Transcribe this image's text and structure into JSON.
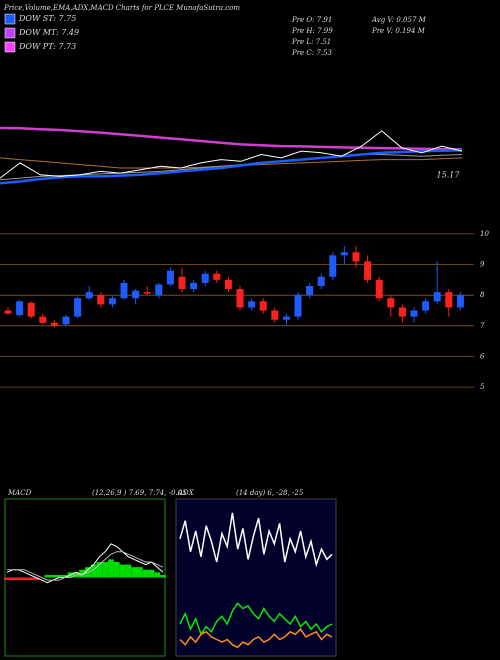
{
  "title": "Price,Volume,EMA,ADX,MACD Charts for PLCE MunafaSutra.com",
  "legend": [
    {
      "label": "DOW ST: 7.75",
      "color": "#1e5cff"
    },
    {
      "label": "DOW MT: 7.49",
      "color": "#c040ff"
    },
    {
      "label": "DOW PT: 7.73",
      "color": "#ff40ff"
    }
  ],
  "stats": [
    "Pre  O: 7.91",
    "Pre  H: 7.99",
    "Pre  L: 7.51",
    "Pre  C: 7.53",
    "Avg V: 0.057 M",
    "Pre  V: 0.194  M"
  ],
  "chart_data": [
    {
      "type": "line",
      "ylim": [
        14,
        22
      ],
      "annotation": {
        "text": "15.17",
        "value": 15.17
      },
      "series": [
        {
          "color": "#d040d0",
          "width": 2.5,
          "values": [
            17.97,
            17.95,
            17.9,
            17.85,
            17.78,
            17.7,
            17.6,
            17.5,
            17.4,
            17.3,
            17.2,
            17.1,
            17.0,
            16.95,
            16.9,
            16.88,
            16.85,
            16.82,
            16.8,
            16.78,
            16.76,
            16.74,
            16.72,
            16.7
          ]
        },
        {
          "color": "#b07030",
          "width": 1,
          "values": [
            16.2,
            16.1,
            16.0,
            15.9,
            15.8,
            15.7,
            15.6,
            15.6,
            15.6,
            15.6,
            15.65,
            15.7,
            15.75,
            15.8,
            15.85,
            15.9,
            15.95,
            16.0,
            16.05,
            16.1,
            16.1,
            16.1,
            16.15,
            16.2
          ]
        },
        {
          "color": "#999999",
          "width": 1,
          "values": [
            14.9,
            15.0,
            15.1,
            15.15,
            15.2,
            15.25,
            15.3,
            15.35,
            15.4,
            15.5,
            15.6,
            15.7,
            15.8,
            15.9,
            16.0,
            16.1,
            16.2,
            16.3,
            16.4,
            16.4,
            16.35,
            16.3,
            16.35,
            16.4
          ]
        },
        {
          "color": "#1e5cff",
          "width": 2.5,
          "values": [
            14.7,
            14.8,
            14.95,
            15.05,
            15.1,
            15.1,
            15.15,
            15.2,
            15.3,
            15.4,
            15.5,
            15.6,
            15.75,
            15.9,
            16.0,
            16.1,
            16.2,
            16.3,
            16.4,
            16.5,
            16.55,
            16.6,
            16.62,
            16.65
          ]
        },
        {
          "color": "#ffffff",
          "width": 1,
          "values": [
            15.0,
            15.9,
            15.2,
            15.1,
            15.2,
            15.4,
            15.3,
            15.5,
            15.7,
            15.6,
            15.9,
            16.1,
            16.0,
            16.4,
            16.2,
            16.6,
            16.5,
            16.3,
            16.9,
            17.8,
            16.8,
            16.5,
            16.9,
            16.6
          ]
        }
      ]
    },
    {
      "type": "candlestick",
      "ylim": [
        4.58,
        10.29
      ],
      "yticks": [
        10,
        9,
        8,
        7,
        6,
        5
      ],
      "up_color": "#1e5cff",
      "down_color": "#ff2020",
      "grid": true,
      "open": [
        7.5,
        7.35,
        7.75,
        7.3,
        7.1,
        7.05,
        7.3,
        7.9,
        8.0,
        7.7,
        7.9,
        7.9,
        8.1,
        8.0,
        8.35,
        8.6,
        8.2,
        8.4,
        8.7,
        8.5,
        8.2,
        7.6,
        7.8,
        7.5,
        7.2,
        7.3,
        8.0,
        8.3,
        8.6,
        9.3,
        9.4,
        9.1,
        8.5,
        7.9,
        7.6,
        7.3,
        7.5,
        7.8,
        8.1,
        7.6
      ],
      "high": [
        7.6,
        7.85,
        7.8,
        7.4,
        7.2,
        7.35,
        7.95,
        8.3,
        8.1,
        8.0,
        8.5,
        8.2,
        8.3,
        8.4,
        8.9,
        8.9,
        8.5,
        8.8,
        8.8,
        8.6,
        8.3,
        7.9,
        7.9,
        7.6,
        7.4,
        8.1,
        8.4,
        8.7,
        9.4,
        9.6,
        9.6,
        9.3,
        8.6,
        8.0,
        7.7,
        7.6,
        7.9,
        9.1,
        8.2,
        8.1
      ],
      "low": [
        7.35,
        7.3,
        7.25,
        7.05,
        6.95,
        7.0,
        7.25,
        7.85,
        7.6,
        7.6,
        7.85,
        7.7,
        8.0,
        7.9,
        8.3,
        8.1,
        8.1,
        8.3,
        8.4,
        8.1,
        7.5,
        7.5,
        7.4,
        7.1,
        7.0,
        7.2,
        7.9,
        8.2,
        8.5,
        9.0,
        8.9,
        8.4,
        7.8,
        7.3,
        7.1,
        7.1,
        7.4,
        7.7,
        7.3,
        7.5
      ],
      "close": [
        7.4,
        7.8,
        7.3,
        7.1,
        7.0,
        7.3,
        7.9,
        8.1,
        7.7,
        7.9,
        8.4,
        8.15,
        8.05,
        8.35,
        8.8,
        8.2,
        8.4,
        8.7,
        8.5,
        8.2,
        7.6,
        7.8,
        7.5,
        7.2,
        7.3,
        8.0,
        8.3,
        8.6,
        9.3,
        9.4,
        9.1,
        8.5,
        7.9,
        7.6,
        7.3,
        7.5,
        7.8,
        8.1,
        7.6,
        8.0
      ]
    },
    {
      "type": "macd",
      "title": "MACD",
      "subtitle": "(12,26,9 ) 7.69, 7.74, -0.05",
      "ylim": [
        -0.3,
        0.3
      ],
      "hist_color": "#00dd00",
      "histogram": [
        -0.01,
        -0.01,
        -0.01,
        -0.01,
        -0.01,
        -0.01,
        0.0,
        0.01,
        0.01,
        0.01,
        0.01,
        0.02,
        0.02,
        0.03,
        0.04,
        0.05,
        0.06,
        0.06,
        0.07,
        0.06,
        0.05,
        0.05,
        0.04,
        0.04,
        0.03,
        0.03,
        0.02,
        0.01
      ],
      "series": [
        {
          "color": "#ffffff",
          "values": [
            0.02,
            0.03,
            0.03,
            0.02,
            0.01,
            0.0,
            -0.01,
            -0.02,
            -0.01,
            0.0,
            0.0,
            0.01,
            0.02,
            0.01,
            0.03,
            0.05,
            0.08,
            0.1,
            0.13,
            0.12,
            0.1,
            0.08,
            0.07,
            0.06,
            0.05,
            0.06,
            0.04,
            0.02
          ]
        },
        {
          "color": "#bbbbbb",
          "values": [
            0.03,
            0.03,
            0.03,
            0.03,
            0.02,
            0.01,
            0.0,
            -0.01,
            -0.01,
            -0.01,
            0.0,
            0.0,
            0.01,
            0.01,
            0.02,
            0.03,
            0.05,
            0.07,
            0.09,
            0.1,
            0.1,
            0.09,
            0.08,
            0.07,
            0.06,
            0.06,
            0.05,
            0.04
          ]
        }
      ]
    },
    {
      "type": "adx",
      "title": "ADX",
      "subtitle": "(14  day) 6, -28, -25",
      "ylim": [
        0,
        60
      ],
      "series": [
        {
          "color": "#ffffff",
          "values": [
            45,
            52,
            40,
            48,
            38,
            50,
            44,
            36,
            47,
            42,
            55,
            41,
            49,
            37,
            46,
            53,
            39,
            48,
            43,
            51,
            36,
            45,
            40,
            48,
            38,
            44,
            35,
            41,
            37,
            39
          ]
        },
        {
          "color": "#00ee00",
          "values": [
            12,
            16,
            10,
            14,
            8,
            11,
            9,
            13,
            15,
            12,
            17,
            20,
            18,
            19,
            16,
            14,
            18,
            15,
            13,
            16,
            14,
            12,
            15,
            11,
            13,
            10,
            12,
            9,
            11,
            12
          ]
        },
        {
          "color": "#ff8c1a",
          "values": [
            6,
            4,
            7,
            5,
            8,
            9,
            7,
            6,
            5,
            6,
            4,
            3,
            5,
            4,
            6,
            7,
            5,
            6,
            8,
            6,
            7,
            9,
            8,
            10,
            7,
            8,
            9,
            6,
            8,
            7
          ]
        }
      ]
    }
  ]
}
